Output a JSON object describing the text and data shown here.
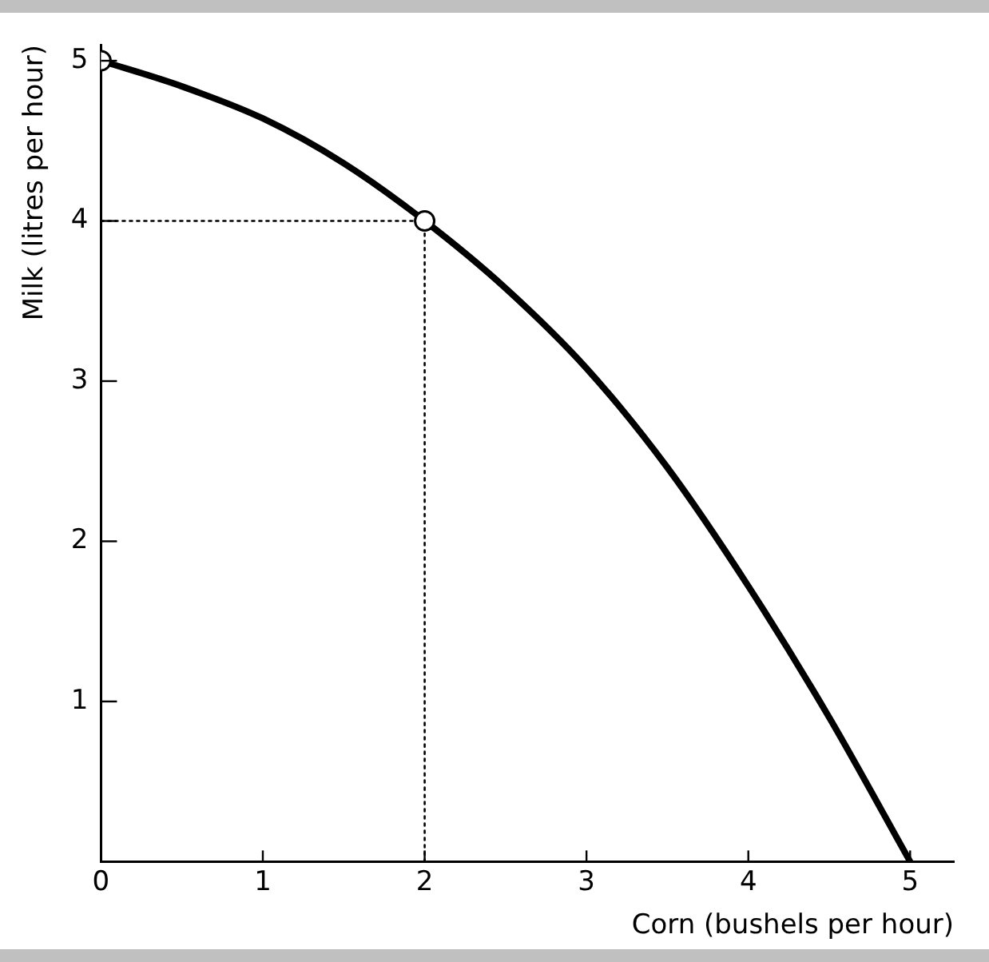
{
  "chart_data": {
    "type": "line",
    "xlabel": "Corn (bushels per hour)",
    "ylabel": "Milk (litres per hour)",
    "xlim": [
      0,
      5.27
    ],
    "ylim": [
      0,
      5.1
    ],
    "xticks": [
      0,
      1,
      2,
      3,
      4,
      5
    ],
    "yticks": [
      {
        "value": 0,
        "label": null
      },
      1,
      2,
      3,
      4,
      5
    ],
    "grid": false,
    "legend": false,
    "series": [
      {
        "type": "line",
        "color": "#000000",
        "line_style": "dotted",
        "marker": "none",
        "x": [
          0,
          2
        ],
        "values": [
          4,
          4
        ]
      },
      {
        "type": "line",
        "color": "#000000",
        "line_style": "dotted",
        "marker": "none",
        "x": [
          2,
          2
        ],
        "values": [
          0,
          4
        ]
      },
      {
        "color": "#000000",
        "line_style": "solid",
        "marker": "none",
        "x": [
          0,
          0.5,
          1,
          1.5,
          2,
          2.5,
          3,
          3.5,
          4,
          4.5,
          5
        ],
        "values": [
          5,
          4.84,
          4.64,
          4.36,
          4,
          3.58,
          3.08,
          2.46,
          1.72,
          0.9,
          0
        ]
      },
      {
        "type": "scatter",
        "color": "#000000",
        "marker": "circle",
        "x": [
          0,
          2
        ],
        "values": [
          5,
          4
        ]
      }
    ]
  }
}
